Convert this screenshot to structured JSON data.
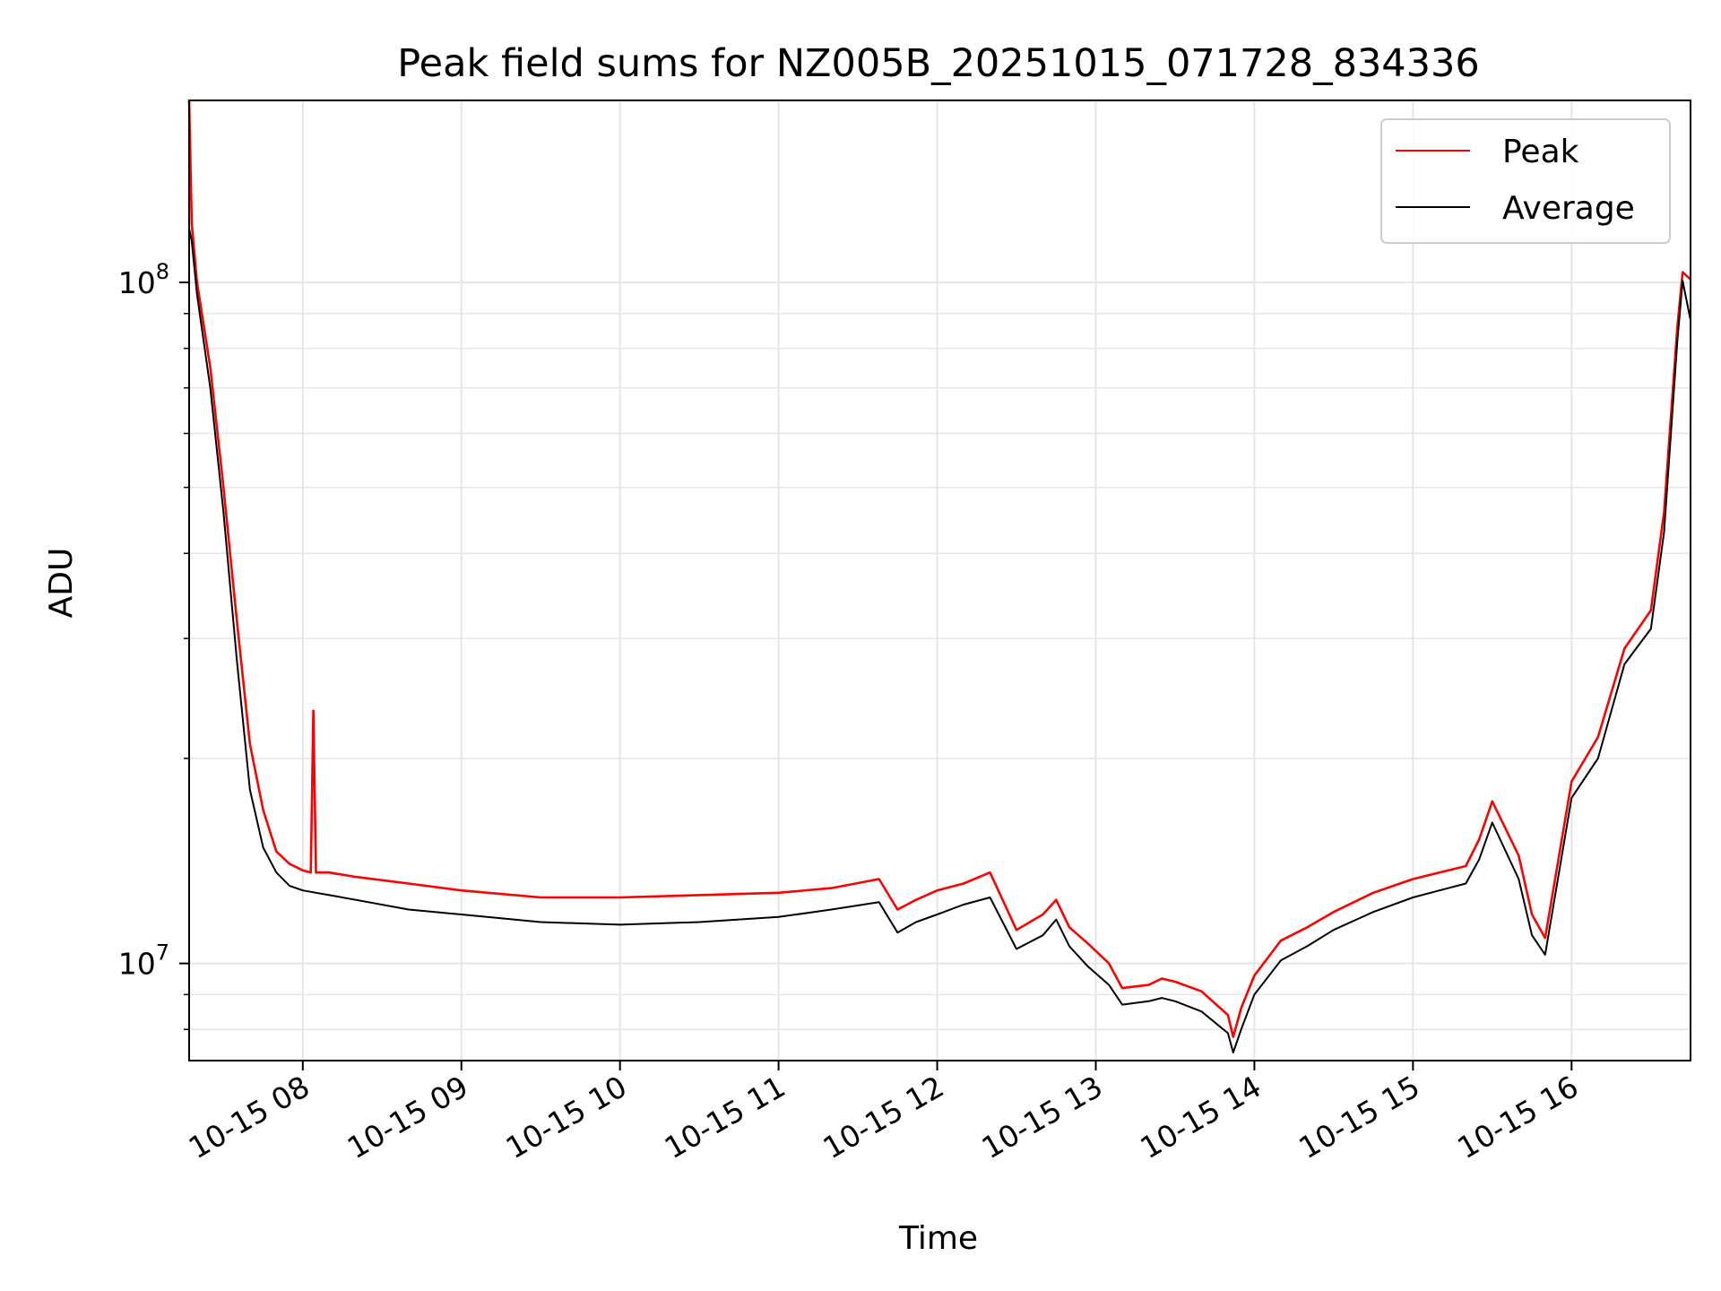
{
  "chart_data": {
    "type": "line",
    "title": "Peak field sums for NZ005B_20251015_071728_834336",
    "xlabel": "Time",
    "ylabel": "ADU",
    "yscale": "log",
    "xlim": [
      "2025-10-15 07:17",
      "2025-10-15 16:45"
    ],
    "ylim": [
      7200000,
      185000000
    ],
    "x_ticks": [
      {
        "t": "2025-10-15 08:00",
        "label": "10-15 08"
      },
      {
        "t": "2025-10-15 09:00",
        "label": "10-15 09"
      },
      {
        "t": "2025-10-15 10:00",
        "label": "10-15 10"
      },
      {
        "t": "2025-10-15 11:00",
        "label": "10-15 11"
      },
      {
        "t": "2025-10-15 12:00",
        "label": "10-15 12"
      },
      {
        "t": "2025-10-15 13:00",
        "label": "10-15 13"
      },
      {
        "t": "2025-10-15 14:00",
        "label": "10-15 14"
      },
      {
        "t": "2025-10-15 15:00",
        "label": "10-15 15"
      },
      {
        "t": "2025-10-15 16:00",
        "label": "10-15 16"
      }
    ],
    "y_ticks": [
      {
        "value": 10000000,
        "mantissa": "10",
        "exp": "7"
      },
      {
        "value": 100000000,
        "mantissa": "10",
        "exp": "8"
      }
    ],
    "grid": true,
    "legend_position": "top-right",
    "colors": {
      "peak": "#ff0000",
      "average": "#000000",
      "grid": "#e6e6e6"
    },
    "series": [
      {
        "name": "Peak",
        "color": "#ff0000",
        "x": [
          "07:17",
          "07:18",
          "07:20",
          "07:25",
          "07:30",
          "07:35",
          "07:40",
          "07:45",
          "07:50",
          "07:55",
          "08:00",
          "08:03",
          "08:04",
          "08:05",
          "08:10",
          "08:20",
          "08:40",
          "09:00",
          "09:30",
          "10:00",
          "10:30",
          "11:00",
          "11:20",
          "11:38",
          "11:45",
          "11:52",
          "12:00",
          "12:10",
          "12:20",
          "12:30",
          "12:40",
          "12:45",
          "12:50",
          "12:57",
          "13:05",
          "13:10",
          "13:20",
          "13:25",
          "13:30",
          "13:40",
          "13:50",
          "13:52",
          "13:55",
          "14:00",
          "14:10",
          "14:20",
          "14:30",
          "14:45",
          "15:00",
          "15:10",
          "15:20",
          "15:25",
          "15:30",
          "15:40",
          "15:45",
          "15:50",
          "16:00",
          "16:10",
          "16:20",
          "16:30",
          "16:35",
          "16:40",
          "16:42",
          "16:45"
        ],
        "y": [
          185000000,
          122000000,
          100000000,
          75000000,
          50000000,
          32000000,
          21000000,
          16800000,
          14600000,
          14000000,
          13700000,
          13600000,
          23500000,
          13600000,
          13600000,
          13400000,
          13100000,
          12800000,
          12500000,
          12500000,
          12600000,
          12700000,
          12900000,
          13300000,
          12000000,
          12400000,
          12800000,
          13100000,
          13600000,
          11200000,
          11800000,
          12400000,
          11300000,
          10700000,
          10000000,
          9200000,
          9300000,
          9500000,
          9400000,
          9100000,
          8400000,
          7800000,
          8600000,
          9600000,
          10800000,
          11300000,
          11900000,
          12700000,
          13300000,
          13600000,
          13900000,
          15200000,
          17300000,
          14400000,
          11800000,
          10900000,
          18500000,
          21500000,
          29000000,
          33000000,
          46000000,
          86000000,
          103500000,
          101000000
        ]
      },
      {
        "name": "Average",
        "color": "#000000",
        "x": [
          "07:17",
          "07:18",
          "07:20",
          "07:25",
          "07:30",
          "07:35",
          "07:40",
          "07:45",
          "07:50",
          "07:55",
          "08:00",
          "08:05",
          "08:10",
          "08:20",
          "08:40",
          "09:00",
          "09:30",
          "10:00",
          "10:30",
          "11:00",
          "11:20",
          "11:38",
          "11:45",
          "11:52",
          "12:00",
          "12:10",
          "12:20",
          "12:30",
          "12:40",
          "12:45",
          "12:50",
          "12:57",
          "13:05",
          "13:10",
          "13:20",
          "13:25",
          "13:30",
          "13:40",
          "13:50",
          "13:52",
          "13:55",
          "14:00",
          "14:10",
          "14:20",
          "14:30",
          "14:45",
          "15:00",
          "15:10",
          "15:20",
          "15:25",
          "15:30",
          "15:40",
          "15:45",
          "15:50",
          "16:00",
          "16:10",
          "16:20",
          "16:30",
          "16:35",
          "16:40",
          "16:42",
          "16:45"
        ],
        "y": [
          120000000,
          115000000,
          96000000,
          70000000,
          46000000,
          28000000,
          18000000,
          14800000,
          13600000,
          13000000,
          12800000,
          12700000,
          12600000,
          12400000,
          12000000,
          11800000,
          11500000,
          11400000,
          11500000,
          11700000,
          12000000,
          12300000,
          11100000,
          11500000,
          11800000,
          12200000,
          12500000,
          10500000,
          11000000,
          11600000,
          10600000,
          9900000,
          9300000,
          8700000,
          8800000,
          8900000,
          8800000,
          8500000,
          7900000,
          7400000,
          8000000,
          9000000,
          10100000,
          10600000,
          11200000,
          11900000,
          12500000,
          12800000,
          13100000,
          14200000,
          16100000,
          13300000,
          11000000,
          10300000,
          17500000,
          20000000,
          27500000,
          31000000,
          43000000,
          82000000,
          100500000,
          88000000
        ]
      }
    ]
  }
}
